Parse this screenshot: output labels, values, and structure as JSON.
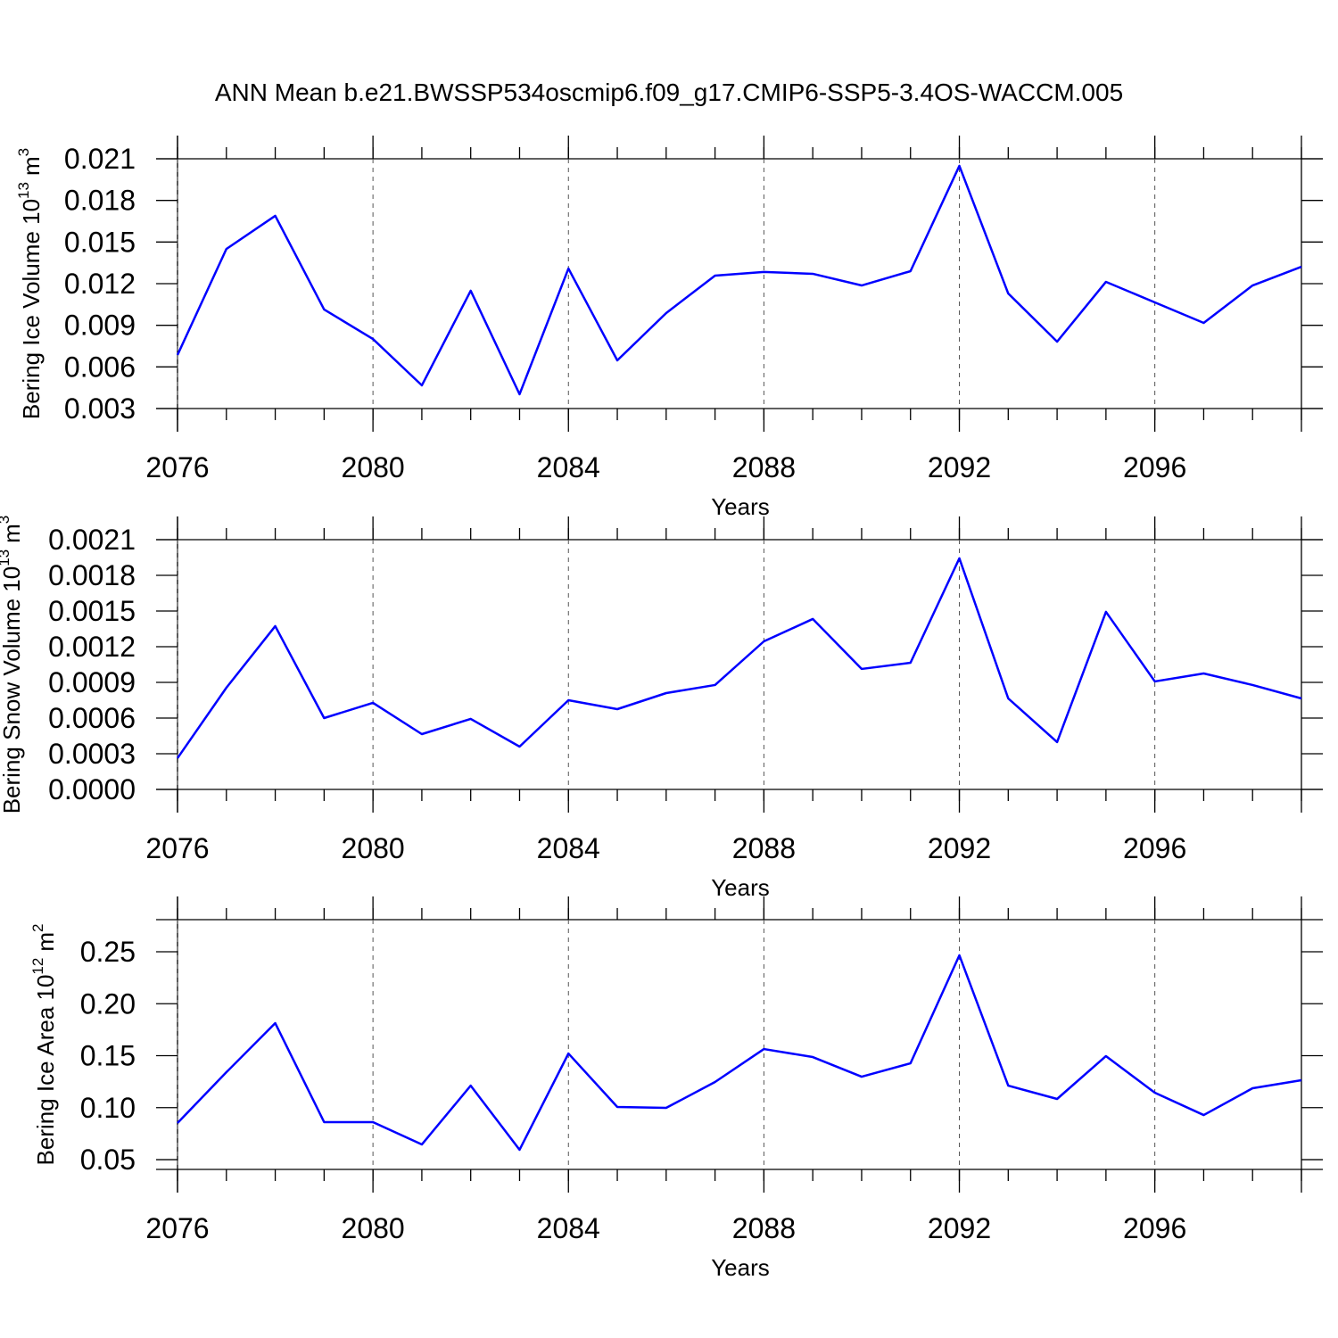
{
  "chart_data": [
    {
      "type": "line",
      "title": "ANN Mean b.e21.BWSSP534oscmip6.f09_g17.CMIP6-SSP5-3.4OS-WACCM.005",
      "xlabel": "Years",
      "ylabel": [
        "Bering Ice Volume 10",
        "13",
        "m",
        "3"
      ],
      "x": [
        2076,
        2077,
        2078,
        2079,
        2080,
        2081,
        2082,
        2083,
        2084,
        2085,
        2086,
        2087,
        2088,
        2089,
        2090,
        2091,
        2092,
        2093,
        2094,
        2095,
        2096,
        2097,
        2098,
        2099
      ],
      "series": [
        {
          "color": "#0000ff",
          "values": [
            0.00686,
            0.0145,
            0.01689,
            0.01014,
            0.00801,
            0.00467,
            0.01149,
            0.00403,
            0.01309,
            0.00647,
            0.00988,
            0.01258,
            0.01284,
            0.01271,
            0.01187,
            0.0129,
            0.02049,
            0.01129,
            0.00782,
            0.01213,
            0.01065,
            0.00917,
            0.01187,
            0.01322
          ]
        }
      ],
      "xlim": [
        2076,
        2099
      ],
      "xticks": [
        2076,
        2080,
        2084,
        2088,
        2092,
        2096
      ],
      "ylim": [
        0.003,
        0.021
      ],
      "yticks": [
        0.003,
        0.006,
        0.009,
        0.012,
        0.015,
        0.018,
        0.021
      ],
      "grid": true
    },
    {
      "type": "line",
      "xlabel": "Years",
      "ylabel": [
        "Bering Snow Volume 10",
        "13",
        "m",
        "3"
      ],
      "x": [
        2076,
        2077,
        2078,
        2079,
        2080,
        2081,
        2082,
        2083,
        2084,
        2085,
        2086,
        2087,
        2088,
        2089,
        2090,
        2091,
        2092,
        2093,
        2094,
        2095,
        2096,
        2097,
        2098,
        2099
      ],
      "series": [
        {
          "color": "#0000ff",
          "values": [
            0.000263,
            0.000855,
            0.001373,
            0.0006,
            0.000728,
            0.000465,
            0.000593,
            0.00036,
            0.00075,
            0.000675,
            0.00081,
            0.000878,
            0.001245,
            0.001433,
            0.001013,
            0.001065,
            0.001943,
            0.000765,
            0.000398,
            0.001493,
            0.000908,
            0.000975,
            0.000878,
            0.000765
          ]
        }
      ],
      "xlim": [
        2076,
        2099
      ],
      "xticks": [
        2076,
        2080,
        2084,
        2088,
        2092,
        2096
      ],
      "ylim": [
        0,
        0.0021
      ],
      "yticks": [
        {
          "value": 0,
          "label": "0.0000"
        },
        0.0003,
        0.0006,
        0.0009,
        0.0012,
        0.0015,
        0.0018,
        0.0021
      ],
      "grid": true
    },
    {
      "type": "line",
      "xlabel": "Years",
      "ylabel": [
        "Bering Ice Area 10",
        "12",
        "m",
        "2"
      ],
      "x": [
        2076,
        2077,
        2078,
        2079,
        2080,
        2081,
        2082,
        2083,
        2084,
        2085,
        2086,
        2087,
        2088,
        2089,
        2090,
        2091,
        2092,
        2093,
        2094,
        2095,
        2096,
        2097,
        2098,
        2099
      ],
      "series": [
        {
          "color": "#0000ff",
          "values": [
            0.0852,
            0.1341,
            0.1813,
            0.0861,
            0.0861,
            0.0646,
            0.1212,
            0.0595,
            0.1521,
            0.1007,
            0.0998,
            0.1247,
            0.1564,
            0.1487,
            0.1298,
            0.1427,
            0.2466,
            0.1212,
            0.1084,
            0.1496,
            0.1144,
            0.0929,
            0.1187,
            0.1264
          ]
        }
      ],
      "xlim": [
        2076,
        2099
      ],
      "xticks": [
        2076,
        2080,
        2084,
        2088,
        2092,
        2096
      ],
      "ylim": [
        0.0406,
        0.2809
      ],
      "yticks": [
        0.05,
        {
          "value": 0.1,
          "label": "0.10"
        },
        {
          "value": 0.15,
          "label": "0.15"
        },
        {
          "value": 0.2,
          "label": "0.20"
        },
        0.25
      ],
      "grid": true
    }
  ]
}
